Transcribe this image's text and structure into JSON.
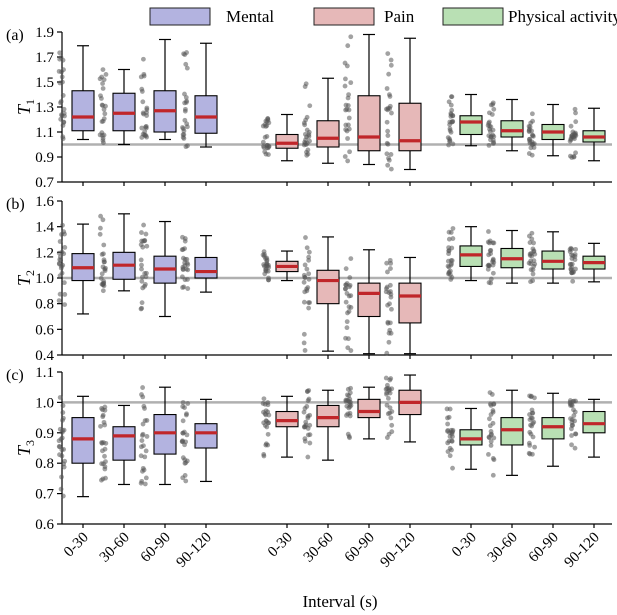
{
  "colors": {
    "Mental": "#b3b3e0",
    "Pain": "#e6b8b8",
    "Physical activity": "#b9e0b4",
    "median": "#c0262a",
    "reference_line": "#b0b0b0",
    "points": "#555555"
  },
  "legend": [
    "Mental",
    "Pain",
    "Physical activity"
  ],
  "xlabel": "Interval (s)",
  "chart_data": [
    {
      "type": "box",
      "panel_label": "(a)",
      "ylabel_base": "T",
      "ylabel_sub": "1",
      "ylim": [
        0.7,
        1.9
      ],
      "yticks": [
        "0.7",
        "0.9",
        "1.1",
        "1.3",
        "1.5",
        "1.7",
        "1.9"
      ],
      "reference": 1.0,
      "categories": [
        "0-30",
        "30-60",
        "60-90",
        "90-120"
      ],
      "series": [
        {
          "name": "Mental",
          "boxes": [
            {
              "whislo": 1.04,
              "q1": 1.11,
              "med": 1.22,
              "q3": 1.43,
              "whishi": 1.79
            },
            {
              "whislo": 1.0,
              "q1": 1.11,
              "med": 1.25,
              "q3": 1.41,
              "whishi": 1.6
            },
            {
              "whislo": 1.04,
              "q1": 1.1,
              "med": 1.27,
              "q3": 1.43,
              "whishi": 1.84
            },
            {
              "whislo": 0.98,
              "q1": 1.09,
              "med": 1.22,
              "q3": 1.39,
              "whishi": 1.81
            }
          ]
        },
        {
          "name": "Pain",
          "boxes": [
            {
              "whislo": 0.87,
              "q1": 0.97,
              "med": 1.01,
              "q3": 1.08,
              "whishi": 1.24
            },
            {
              "whislo": 0.85,
              "q1": 0.98,
              "med": 1.05,
              "q3": 1.19,
              "whishi": 1.53
            },
            {
              "whislo": 0.84,
              "q1": 0.95,
              "med": 1.06,
              "q3": 1.39,
              "whishi": 1.88
            },
            {
              "whislo": 0.8,
              "q1": 0.95,
              "med": 1.03,
              "q3": 1.33,
              "whishi": 1.85
            }
          ]
        },
        {
          "name": "Physical activity",
          "boxes": [
            {
              "whislo": 0.99,
              "q1": 1.08,
              "med": 1.18,
              "q3": 1.23,
              "whishi": 1.4
            },
            {
              "whislo": 0.95,
              "q1": 1.06,
              "med": 1.11,
              "q3": 1.19,
              "whishi": 1.36
            },
            {
              "whislo": 0.91,
              "q1": 1.04,
              "med": 1.1,
              "q3": 1.16,
              "whishi": 1.32
            },
            {
              "whislo": 0.87,
              "q1": 1.02,
              "med": 1.06,
              "q3": 1.11,
              "whishi": 1.29
            }
          ]
        }
      ]
    },
    {
      "type": "box",
      "panel_label": "(b)",
      "ylabel_base": "T",
      "ylabel_sub": "2",
      "ylim": [
        0.4,
        1.6
      ],
      "yticks": [
        "0.4",
        "0.6",
        "0.8",
        "1.0",
        "1.2",
        "1.4",
        "1.6"
      ],
      "reference": 1.0,
      "categories": [
        "0-30",
        "30-60",
        "60-90",
        "90-120"
      ],
      "series": [
        {
          "name": "Mental",
          "boxes": [
            {
              "whislo": 0.72,
              "q1": 0.98,
              "med": 1.08,
              "q3": 1.19,
              "whishi": 1.42
            },
            {
              "whislo": 0.9,
              "q1": 0.99,
              "med": 1.1,
              "q3": 1.2,
              "whishi": 1.5
            },
            {
              "whislo": 0.7,
              "q1": 0.96,
              "med": 1.07,
              "q3": 1.17,
              "whishi": 1.44
            },
            {
              "whislo": 0.89,
              "q1": 1.0,
              "med": 1.05,
              "q3": 1.16,
              "whishi": 1.33
            }
          ]
        },
        {
          "name": "Pain",
          "boxes": [
            {
              "whislo": 0.98,
              "q1": 1.05,
              "med": 1.09,
              "q3": 1.13,
              "whishi": 1.21
            },
            {
              "whislo": 0.43,
              "q1": 0.8,
              "med": 0.98,
              "q3": 1.06,
              "whishi": 1.32
            },
            {
              "whislo": 0.41,
              "q1": 0.7,
              "med": 0.88,
              "q3": 0.96,
              "whishi": 1.22
            },
            {
              "whislo": 0.41,
              "q1": 0.65,
              "med": 0.86,
              "q3": 0.96,
              "whishi": 1.16
            }
          ]
        },
        {
          "name": "Physical activity",
          "boxes": [
            {
              "whislo": 0.98,
              "q1": 1.09,
              "med": 1.18,
              "q3": 1.25,
              "whishi": 1.4
            },
            {
              "whislo": 0.96,
              "q1": 1.08,
              "med": 1.15,
              "q3": 1.23,
              "whishi": 1.37
            },
            {
              "whislo": 0.96,
              "q1": 1.07,
              "med": 1.13,
              "q3": 1.21,
              "whishi": 1.36
            },
            {
              "whislo": 0.97,
              "q1": 1.07,
              "med": 1.12,
              "q3": 1.17,
              "whishi": 1.27
            }
          ]
        }
      ]
    },
    {
      "type": "box",
      "panel_label": "(c)",
      "ylabel_base": "T",
      "ylabel_sub": "3",
      "ylim": [
        0.6,
        1.1
      ],
      "yticks": [
        "0.6",
        "0.7",
        "0.8",
        "0.9",
        "1.0",
        "1.1"
      ],
      "reference": 1.0,
      "categories": [
        "0-30",
        "30-60",
        "60-90",
        "90-120"
      ],
      "series": [
        {
          "name": "Mental",
          "boxes": [
            {
              "whislo": 0.69,
              "q1": 0.8,
              "med": 0.88,
              "q3": 0.95,
              "whishi": 1.02
            },
            {
              "whislo": 0.73,
              "q1": 0.81,
              "med": 0.89,
              "q3": 0.92,
              "whishi": 0.99
            },
            {
              "whislo": 0.73,
              "q1": 0.83,
              "med": 0.9,
              "q3": 0.96,
              "whishi": 1.05
            },
            {
              "whislo": 0.74,
              "q1": 0.85,
              "med": 0.9,
              "q3": 0.93,
              "whishi": 1.01
            }
          ]
        },
        {
          "name": "Pain",
          "boxes": [
            {
              "whislo": 0.82,
              "q1": 0.92,
              "med": 0.94,
              "q3": 0.97,
              "whishi": 1.02
            },
            {
              "whislo": 0.81,
              "q1": 0.92,
              "med": 0.95,
              "q3": 0.99,
              "whishi": 1.04
            },
            {
              "whislo": 0.88,
              "q1": 0.95,
              "med": 0.97,
              "q3": 1.01,
              "whishi": 1.05
            },
            {
              "whislo": 0.87,
              "q1": 0.96,
              "med": 1.0,
              "q3": 1.04,
              "whishi": 1.09
            }
          ]
        },
        {
          "name": "Physical activity",
          "boxes": [
            {
              "whislo": 0.78,
              "q1": 0.86,
              "med": 0.88,
              "q3": 0.91,
              "whishi": 0.98
            },
            {
              "whislo": 0.76,
              "q1": 0.86,
              "med": 0.91,
              "q3": 0.95,
              "whishi": 1.04
            },
            {
              "whislo": 0.79,
              "q1": 0.88,
              "med": 0.92,
              "q3": 0.95,
              "whishi": 1.03
            },
            {
              "whislo": 0.82,
              "q1": 0.9,
              "med": 0.93,
              "q3": 0.97,
              "whishi": 1.01
            }
          ]
        }
      ]
    }
  ]
}
